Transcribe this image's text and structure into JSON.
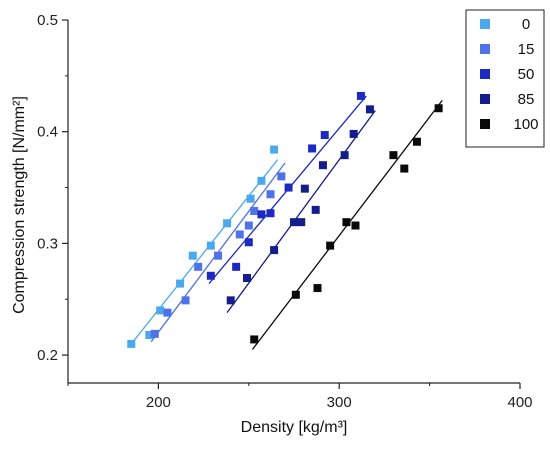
{
  "chart_data": {
    "type": "scatter",
    "xlabel": "Density [kg/m³]",
    "ylabel": "Compression strength [N/mm²]",
    "xlim": [
      150,
      400
    ],
    "ylim": [
      0.175,
      0.5
    ],
    "x_ticks": [
      200,
      300,
      400
    ],
    "y_ticks": [
      0.2,
      0.3,
      0.4,
      0.5
    ],
    "x_tick_labels": [
      "200",
      "300",
      "400"
    ],
    "y_tick_labels": [
      "0.2",
      "0.3",
      "0.4",
      "0.5"
    ],
    "grid": false,
    "legend_position": "top-right",
    "series": [
      {
        "name": "0",
        "color": "#4aa8ec",
        "points": [
          [
            185,
            0.21
          ],
          [
            195,
            0.218
          ],
          [
            201,
            0.24
          ],
          [
            212,
            0.264
          ],
          [
            219,
            0.289
          ],
          [
            229,
            0.298
          ],
          [
            238,
            0.318
          ],
          [
            251,
            0.34
          ],
          [
            257,
            0.356
          ],
          [
            264,
            0.384
          ]
        ],
        "fit": [
          [
            185,
            0.21
          ],
          [
            266,
            0.375
          ]
        ]
      },
      {
        "name": "15",
        "color": "#4f73e6",
        "points": [
          [
            198,
            0.219
          ],
          [
            205,
            0.238
          ],
          [
            215,
            0.249
          ],
          [
            222,
            0.279
          ],
          [
            233,
            0.289
          ],
          [
            245,
            0.308
          ],
          [
            250,
            0.316
          ],
          [
            253,
            0.329
          ],
          [
            262,
            0.344
          ],
          [
            268,
            0.36
          ]
        ],
        "fit": [
          [
            196,
            0.212
          ],
          [
            270,
            0.372
          ]
        ]
      },
      {
        "name": "50",
        "color": "#1c29c2",
        "points": [
          [
            229,
            0.271
          ],
          [
            243,
            0.279
          ],
          [
            250,
            0.301
          ],
          [
            257,
            0.326
          ],
          [
            262,
            0.327
          ],
          [
            272,
            0.35
          ],
          [
            285,
            0.385
          ],
          [
            292,
            0.397
          ],
          [
            312,
            0.432
          ]
        ],
        "fit": [
          [
            228,
            0.264
          ],
          [
            315,
            0.432
          ]
        ]
      },
      {
        "name": "85",
        "color": "#131d8c",
        "points": [
          [
            240,
            0.249
          ],
          [
            249,
            0.269
          ],
          [
            264,
            0.294
          ],
          [
            275,
            0.319
          ],
          [
            279,
            0.319
          ],
          [
            281,
            0.349
          ],
          [
            287,
            0.33
          ],
          [
            291,
            0.37
          ],
          [
            303,
            0.379
          ],
          [
            308,
            0.398
          ],
          [
            317,
            0.42
          ]
        ],
        "fit": [
          [
            238,
            0.238
          ],
          [
            320,
            0.419
          ]
        ]
      },
      {
        "name": "100",
        "color": "#0a0a0a",
        "points": [
          [
            253,
            0.214
          ],
          [
            276,
            0.254
          ],
          [
            288,
            0.26
          ],
          [
            295,
            0.298
          ],
          [
            304,
            0.319
          ],
          [
            309,
            0.316
          ],
          [
            330,
            0.379
          ],
          [
            336,
            0.367
          ],
          [
            343,
            0.391
          ],
          [
            355,
            0.421
          ]
        ],
        "fit": [
          [
            252,
            0.205
          ],
          [
            357,
            0.428
          ]
        ]
      }
    ]
  }
}
